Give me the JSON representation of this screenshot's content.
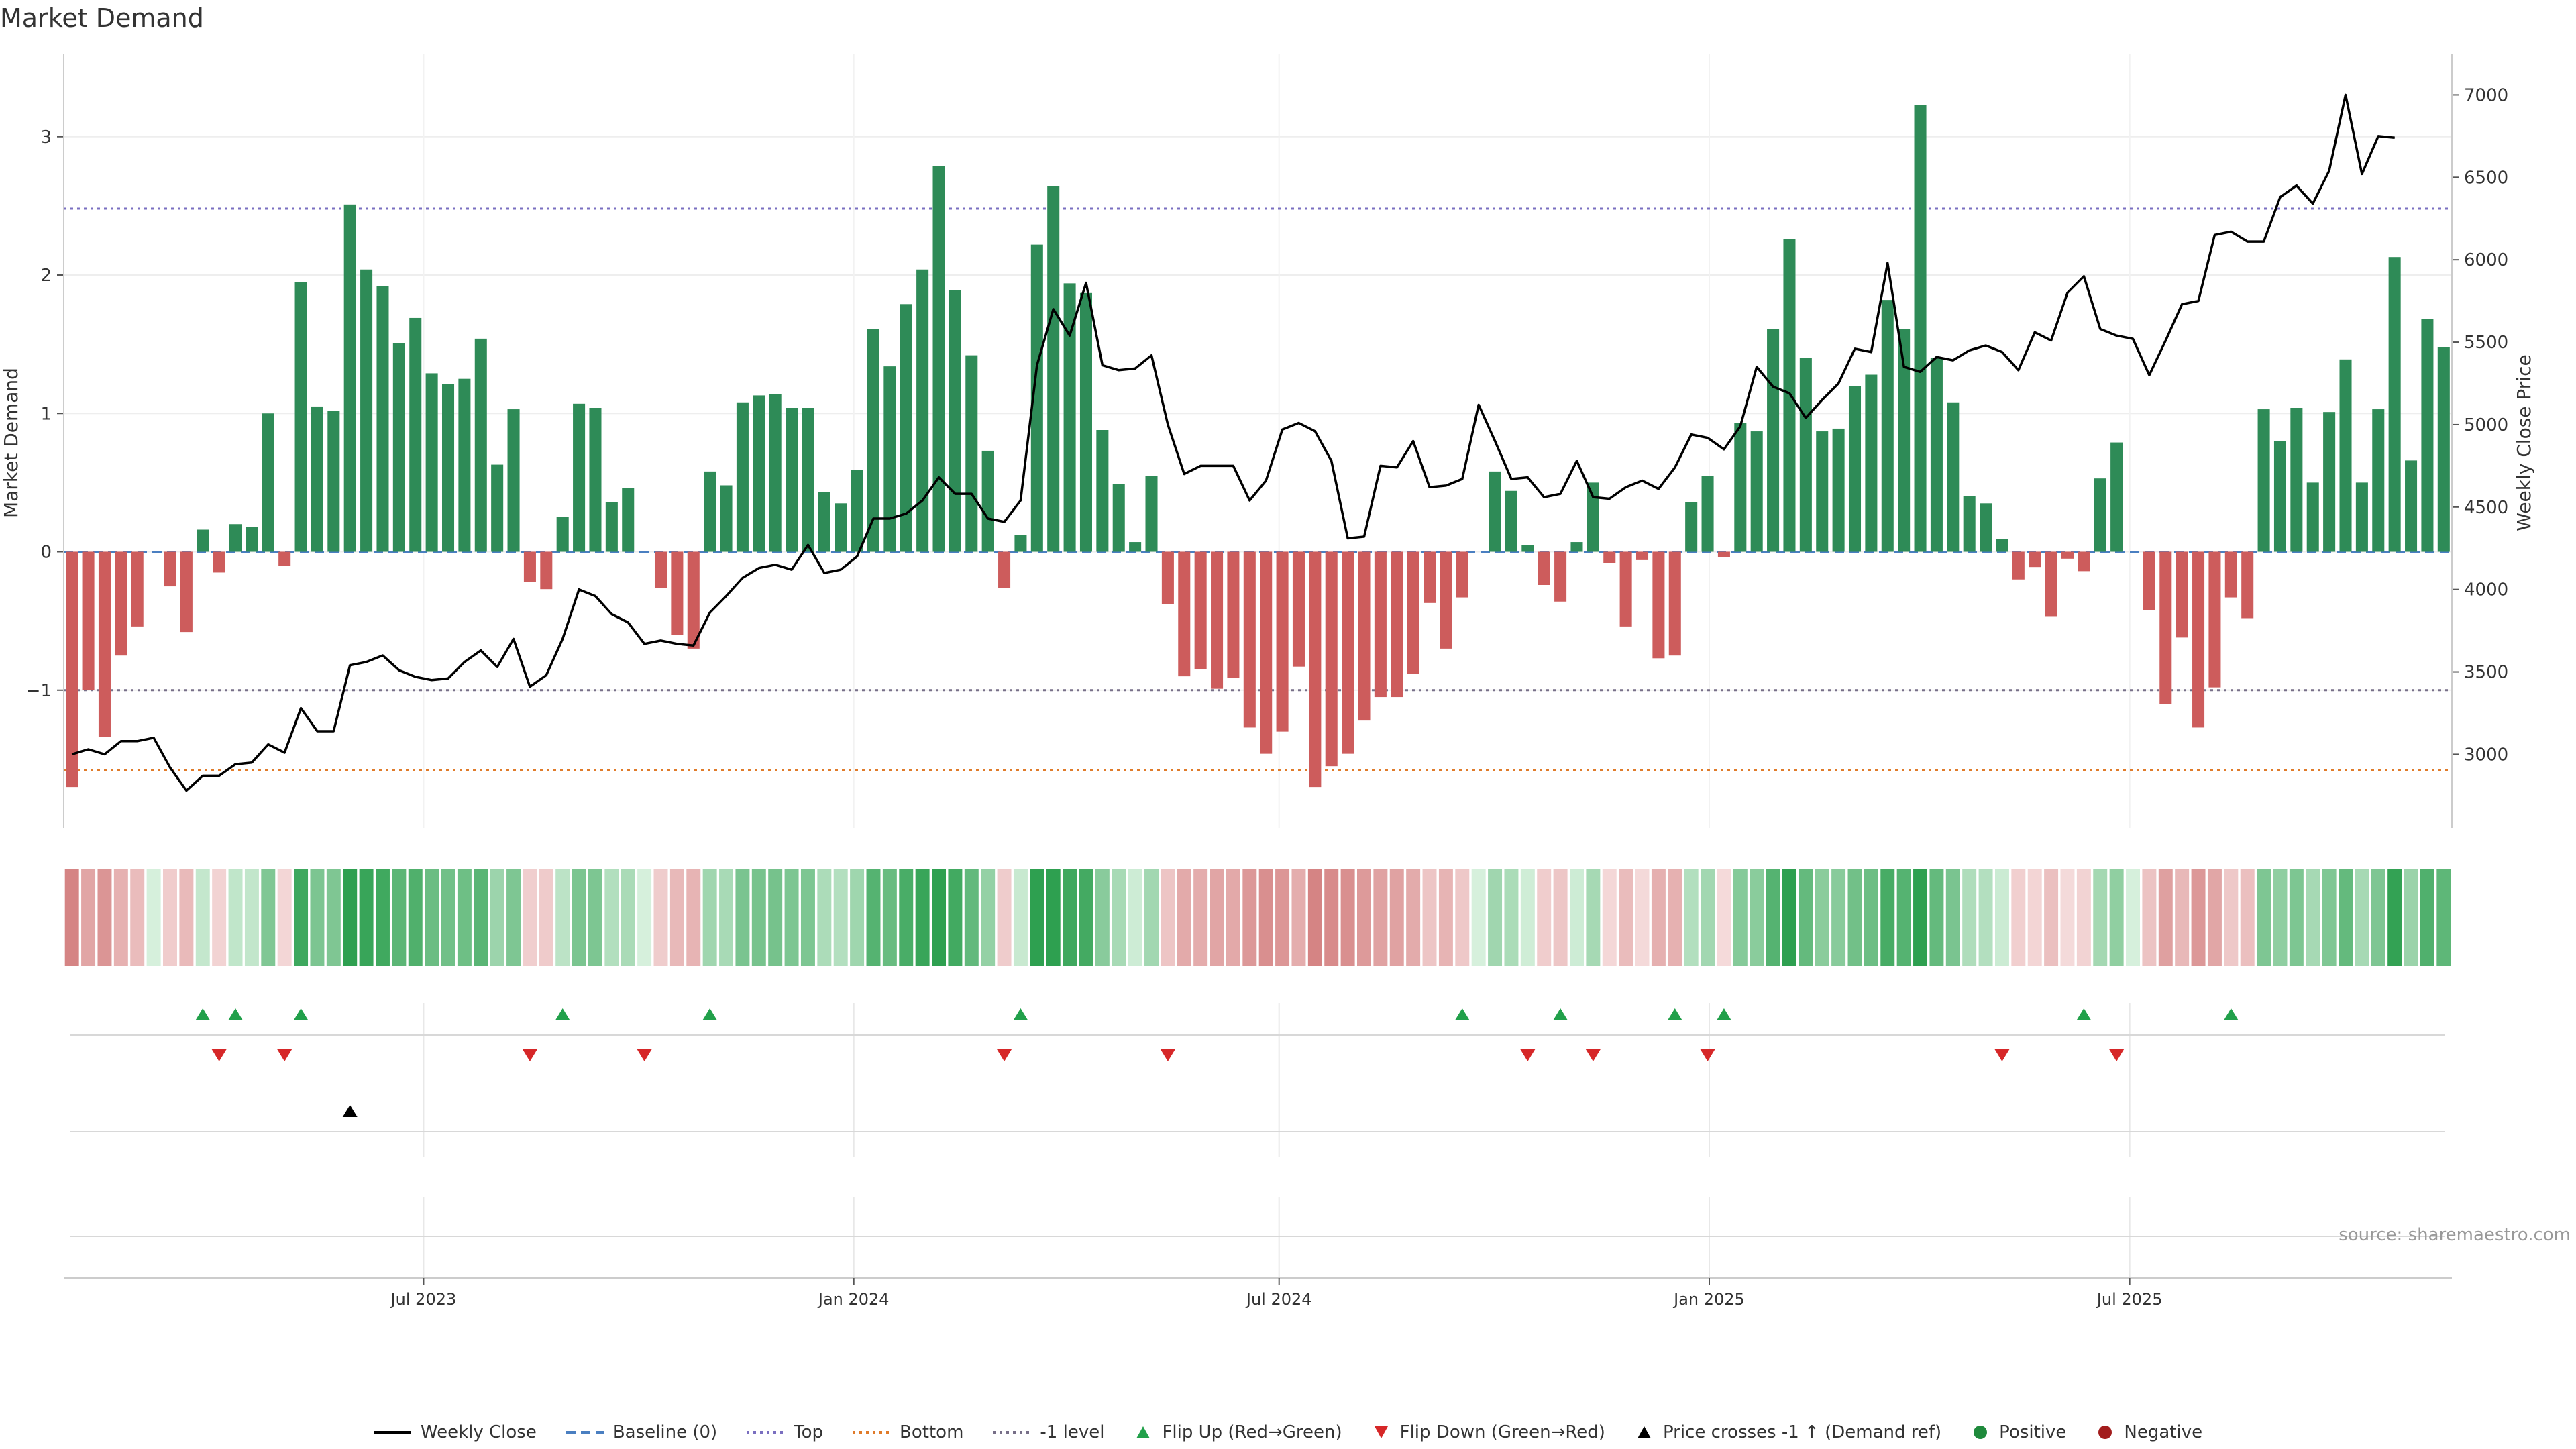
{
  "chart_data": {
    "type": "bar",
    "title": "Market Demand",
    "ylabel": "Market Demand",
    "y2label": "Weekly Close Price",
    "ylim": [
      -2.0,
      3.6
    ],
    "y2lim": [
      2550,
      7250
    ],
    "yticks": [
      3,
      2,
      1,
      0,
      -1
    ],
    "y2ticks": [
      7000,
      6500,
      6000,
      5500,
      5000,
      4500,
      4000,
      3500,
      3000
    ],
    "xticks": [
      {
        "label": "Jul 2023",
        "week": 22
      },
      {
        "label": "Jan 2024",
        "week": 48.3
      },
      {
        "label": "Jul 2024",
        "week": 74.3
      },
      {
        "label": "Jan 2025",
        "week": 100.6
      },
      {
        "label": "Jul 2025",
        "week": 126.3
      }
    ],
    "levels": {
      "top": 2.48,
      "bottom": -1.58,
      "minus_one": -1.0,
      "baseline": 0
    },
    "demand": [
      -1.7,
      -1.0,
      -1.34,
      -0.75,
      -0.54,
      0,
      -0.25,
      -0.58,
      0.16,
      -0.15,
      0.2,
      0.18,
      1.0,
      -0.1,
      1.95,
      1.05,
      1.02,
      2.51,
      2.04,
      1.92,
      1.51,
      1.69,
      1.29,
      1.21,
      1.25,
      1.54,
      0.63,
      1.03,
      -0.22,
      -0.27,
      0.25,
      1.07,
      1.04,
      0.36,
      0.46,
      0,
      -0.26,
      -0.6,
      -0.7,
      0.58,
      0.48,
      1.08,
      1.13,
      1.14,
      1.04,
      1.04,
      0.43,
      0.35,
      0.59,
      1.61,
      1.34,
      1.79,
      2.04,
      2.79,
      1.89,
      1.42,
      0.73,
      -0.26,
      0.12,
      2.22,
      2.64,
      1.94,
      1.87,
      0.88,
      0.49,
      0.07,
      0.55,
      -0.38,
      -0.9,
      -0.85,
      -0.99,
      -0.91,
      -1.27,
      -1.46,
      -1.3,
      -0.83,
      -1.7,
      -1.55,
      -1.46,
      -1.22,
      -1.05,
      -1.05,
      -0.88,
      -0.37,
      -0.7,
      -0.33,
      0,
      0.58,
      0.44,
      0.05,
      -0.24,
      -0.36,
      0.07,
      0.5,
      -0.08,
      -0.54,
      -0.06,
      -0.77,
      -0.75,
      0.36,
      0.55,
      -0.04,
      0.93,
      0.87,
      1.61,
      2.26,
      1.4,
      0.87,
      0.89,
      1.2,
      1.28,
      1.82,
      1.61,
      3.23,
      1.4,
      1.08,
      0.4,
      0.35,
      0.09,
      -0.2,
      -0.11,
      -0.47,
      -0.05,
      -0.14,
      0.53,
      0.79,
      0,
      -0.42,
      -1.1,
      -0.62,
      -1.27,
      -0.98,
      -0.33,
      -0.48,
      1.03,
      0.8,
      1.04,
      0.5,
      1.01,
      1.39,
      0.5,
      1.03,
      2.13,
      0.66,
      1.68,
      1.48
    ],
    "close": [
      3000,
      3030,
      3000,
      3080,
      3080,
      3100,
      2920,
      2780,
      2870,
      2870,
      2940,
      2950,
      3060,
      3010,
      3280,
      3140,
      3140,
      3540,
      3560,
      3600,
      3510,
      3470,
      3450,
      3460,
      3560,
      3630,
      3530,
      3700,
      3410,
      3480,
      3700,
      4000,
      3960,
      3850,
      3800,
      3670,
      3690,
      3670,
      3660,
      3860,
      3960,
      4070,
      4130,
      4150,
      4120,
      4270,
      4100,
      4120,
      4200,
      4430,
      4430,
      4460,
      4540,
      4680,
      4580,
      4580,
      4430,
      4410,
      4540,
      5360,
      5700,
      5540,
      5860,
      5360,
      5330,
      5340,
      5420,
      5000,
      4700,
      4750,
      4750,
      4750,
      4540,
      4660,
      4970,
      5010,
      4960,
      4780,
      4310,
      4320,
      4750,
      4740,
      4900,
      4620,
      4630,
      4670,
      5120,
      4900,
      4670,
      4680,
      4560,
      4580,
      4780,
      4560,
      4550,
      4620,
      4660,
      4610,
      4740,
      4940,
      4920,
      4850,
      4990,
      5350,
      5230,
      5190,
      5040,
      5150,
      5250,
      5460,
      5440,
      5980,
      5350,
      5320,
      5410,
      5390,
      5450,
      5480,
      5440,
      5330,
      5560,
      5510,
      5800,
      5900,
      5580,
      5540,
      5520,
      5300,
      5510,
      5730,
      5750,
      6150,
      6170,
      6110,
      6110,
      6380,
      6450,
      6340,
      6540,
      7000,
      6520,
      6750,
      6740
    ],
    "flip_up_weeks": [
      8,
      10,
      14,
      30,
      39,
      58,
      85,
      91,
      98,
      101,
      123,
      132
    ],
    "flip_down_weeks": [
      9,
      13,
      28,
      35,
      57,
      67,
      89,
      93,
      100,
      118,
      125
    ],
    "price_cross_weeks": [
      17
    ],
    "source_note": "source: sharemaestro.com",
    "legend": [
      {
        "label": "Weekly Close",
        "kind": "line",
        "color": "#000000"
      },
      {
        "label": "Baseline (0)",
        "kind": "dash",
        "color": "#4a7fc1"
      },
      {
        "label": "Top",
        "kind": "dot",
        "color": "#7a6fc0"
      },
      {
        "label": "Bottom",
        "kind": "dot",
        "color": "#e07b2a"
      },
      {
        "label": "-1 level",
        "kind": "dot",
        "color": "#776f88"
      },
      {
        "label": "Flip Up (Red→Green)",
        "kind": "tri-up",
        "color": "#21a04a"
      },
      {
        "label": "Flip Down (Green→Red)",
        "kind": "tri-down",
        "color": "#d62728"
      },
      {
        "label": "Price crosses -1 ↑ (Demand ref)",
        "kind": "tri-up",
        "color": "#000000"
      },
      {
        "label": "Positive",
        "kind": "circle",
        "color": "#1f8a3c"
      },
      {
        "label": "Negative",
        "kind": "circle",
        "color": "#a31d1d"
      }
    ],
    "colors": {
      "positive": "#2e8b57",
      "negative": "#cd5c5c",
      "close": "#000000"
    }
  }
}
